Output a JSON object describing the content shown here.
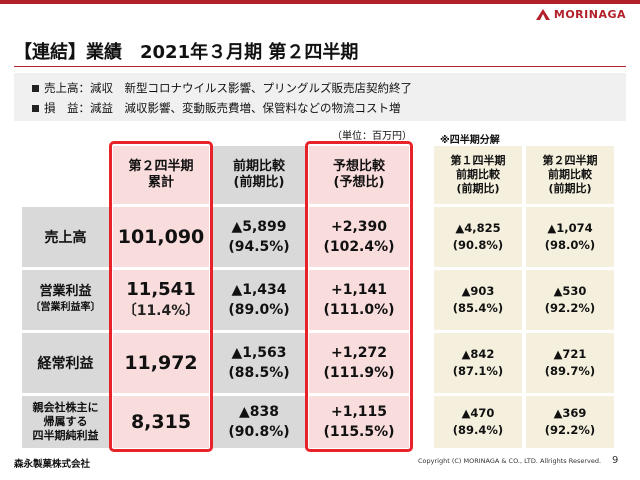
{
  "brand": {
    "logo_text": "MORINAGA",
    "logo_color": "#b3202a"
  },
  "title": "【連結】業績　2021年３月期 第２四半期",
  "summary": [
    "売上高：減収　新型コロナウイルス影響、プリングルズ販売店契約終了",
    "損　益：減益　減収影響、変動販売費増、保管料などの物流コスト増"
  ],
  "unit_note": "（単位：百万円）",
  "quarter_note": "※四半期分解",
  "headers": {
    "cumulative": [
      "第２四半期",
      "累計"
    ],
    "yoy": [
      "前期比較",
      "(前期比)"
    ],
    "vs_forecast": [
      "予想比較",
      "(予想比)"
    ],
    "q1": [
      "第１四半期",
      "前期比較",
      "(前期比)"
    ],
    "q2": [
      "第２四半期",
      "前期比較",
      "(前期比)"
    ]
  },
  "rows": [
    {
      "label": [
        "売上高"
      ],
      "cumulative": "101,090",
      "cumulative_sub": "",
      "yoy": "▲5,899",
      "yoy_pct": "(94.5%)",
      "fc": "+2,390",
      "fc_pct": "(102.4%)",
      "q1": "▲4,825",
      "q1_pct": "(90.8%)",
      "q2": "▲1,074",
      "q2_pct": "(98.0%)"
    },
    {
      "label": [
        "営業利益",
        "〔営業利益率〕"
      ],
      "cumulative": "11,541",
      "cumulative_sub": "〔11.4%〕",
      "yoy": "▲1,434",
      "yoy_pct": "(89.0%)",
      "fc": "+1,141",
      "fc_pct": "(111.0%)",
      "q1": "▲903",
      "q1_pct": "(85.4%)",
      "q2": "▲530",
      "q2_pct": "(92.2%)"
    },
    {
      "label": [
        "経常利益"
      ],
      "cumulative": "11,972",
      "cumulative_sub": "",
      "yoy": "▲1,563",
      "yoy_pct": "(88.5%)",
      "fc": "+1,272",
      "fc_pct": "(111.9%)",
      "q1": "▲842",
      "q1_pct": "(87.1%)",
      "q2": "▲721",
      "q2_pct": "(89.7%)"
    },
    {
      "label": [
        "親会社株主に",
        "帰属する",
        "四半期純利益"
      ],
      "cumulative": "8,315",
      "cumulative_sub": "",
      "yoy": "▲838",
      "yoy_pct": "(90.8%)",
      "fc": "+1,115",
      "fc_pct": "(115.5%)",
      "q1": "▲470",
      "q1_pct": "(89.4%)",
      "q2": "▲369",
      "q2_pct": "(92.2%)"
    }
  ],
  "footer": {
    "company": "森永製菓株式会社",
    "copyright": "Copyright (C) MORINAGA & CO., LTD. Allrights Reserved.",
    "page": "9"
  },
  "colors": {
    "accent": "#b3202a",
    "highlight_box": "#e8222a",
    "gray": "#d9d9d9",
    "pink": "#f9dcdc",
    "beige": "#f4f0dd"
  }
}
